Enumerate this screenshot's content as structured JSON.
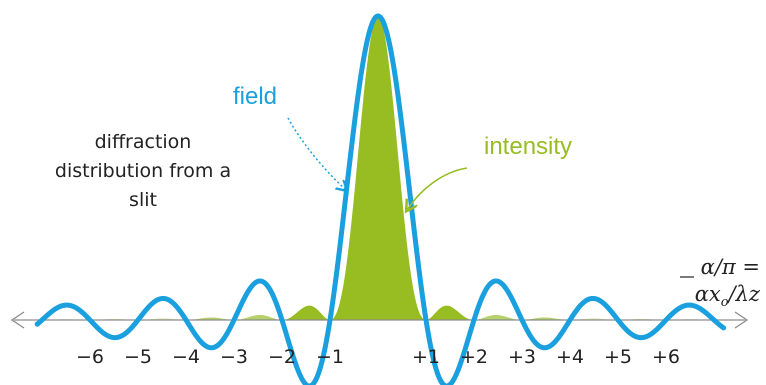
{
  "colors": {
    "field": "#1aa0de",
    "intensity": "#97bd22",
    "intensity_light": "#d2e4a3",
    "axis": "#8c8c8c",
    "text": "#222222"
  },
  "labels": {
    "field": "field",
    "intensity": "intensity",
    "description_lines": [
      "diffraction",
      "distribution from a",
      "slit"
    ],
    "axis_line1": "α/π =",
    "axis_line2": "αx",
    "axis_line2_sub": "o",
    "axis_line2_tail": "/λz"
  },
  "ticks": [
    {
      "value": -6,
      "label": "−6"
    },
    {
      "value": -5,
      "label": "−5"
    },
    {
      "value": -4,
      "label": "−4"
    },
    {
      "value": -3,
      "label": "−3"
    },
    {
      "value": -2,
      "label": "−2"
    },
    {
      "value": -1,
      "label": "−1"
    },
    {
      "value": 1,
      "label": "+1"
    },
    {
      "value": 2,
      "label": "+2"
    },
    {
      "value": 3,
      "label": "+3"
    },
    {
      "value": 4,
      "label": "+4"
    },
    {
      "value": 5,
      "label": "+5"
    },
    {
      "value": 6,
      "label": "+6"
    }
  ],
  "curves": {
    "field": "sinc(α/π)",
    "intensity": "sinc²(α/π)"
  }
}
